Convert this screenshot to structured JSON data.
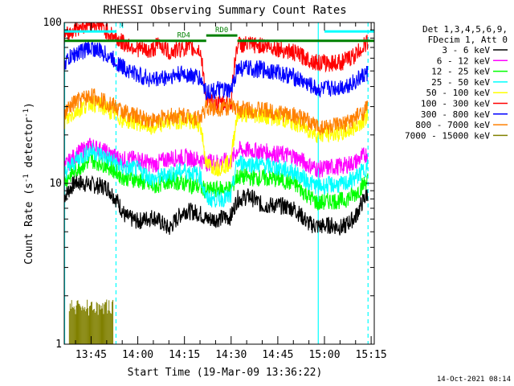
{
  "chart_data": {
    "type": "line",
    "title": "RHESSI Observing Summary Count Rates",
    "xlabel": "Start Time (19-Mar-09 13:36:22)",
    "ylabel_prefix": "Count Rate (s",
    "ylabel_exp": "-1",
    "ylabel_suffix": " detector",
    "ylabel_exp2": "-1",
    "ylabel_close": ")",
    "y_scale": "log",
    "ylim": [
      1,
      100
    ],
    "xlim": [
      "13:36:22",
      "15:16"
    ],
    "x_ticks": [
      {
        "time": "13:45",
        "label": "13:45"
      },
      {
        "time": "14:00",
        "label": "14:00"
      },
      {
        "time": "14:15",
        "label": "14:15"
      },
      {
        "time": "14:30",
        "label": "14:30"
      },
      {
        "time": "14:45",
        "label": "14:45"
      },
      {
        "time": "15:00",
        "label": "15:00"
      },
      {
        "time": "15:15",
        "label": "15:15"
      }
    ],
    "y_ticks": [
      {
        "value": 1,
        "label": "1"
      },
      {
        "value": 10,
        "label": "10"
      },
      {
        "value": 100,
        "label": "100"
      }
    ],
    "legend_header": [
      "Det 1,3,4,5,6,9,",
      "FDecim 1, Att 0"
    ],
    "legend_placement": "right",
    "timestamp": "14-Oct-2021 08:14",
    "attenuator_bars": [
      {
        "label": "",
        "start": "13:36:22",
        "end": "13:53",
        "color": "#00ffff",
        "level": 88
      },
      {
        "label": "N",
        "start": "13:53",
        "end": "13:55",
        "color": "#00ffff",
        "level": 88,
        "text_only": true
      },
      {
        "label": "",
        "start": "15:00",
        "end": "15:16",
        "color": "#00ffff",
        "level": 88
      },
      {
        "label": "RD4",
        "start": "13:36:22",
        "end": "14:22",
        "color": "#008000",
        "level": 77
      },
      {
        "label": "RD0",
        "start": "14:22",
        "end": "14:32",
        "color": "#008000",
        "level": 83
      },
      {
        "label": "",
        "start": "14:32",
        "end": "15:16",
        "color": "#008000",
        "level": 77
      }
    ],
    "vlines": [
      {
        "time": "13:36:30",
        "color": "#00ffff",
        "style": "solid"
      },
      {
        "time": "13:53",
        "color": "#00ffff",
        "style": "dashed"
      },
      {
        "time": "14:58",
        "color": "#00ffff",
        "style": "solid"
      },
      {
        "time": "15:14",
        "color": "#00ffff",
        "style": "dashed"
      }
    ],
    "series": [
      {
        "name": "3 - 6 keV",
        "color": "#000000",
        "points": [
          [
            "13:36:22",
            8.3
          ],
          [
            "13:40",
            10.2
          ],
          [
            "13:45",
            9.8
          ],
          [
            "13:50",
            9.5
          ],
          [
            "13:53",
            8.0
          ],
          [
            "13:56",
            6.2
          ],
          [
            "14:00",
            5.8
          ],
          [
            "14:05",
            6.2
          ],
          [
            "14:10",
            5.2
          ],
          [
            "14:15",
            6.8
          ],
          [
            "14:20",
            6.5
          ],
          [
            "14:22",
            6.0
          ],
          [
            "14:25",
            6.0
          ],
          [
            "14:30",
            6.2
          ],
          [
            "14:32",
            8.0
          ],
          [
            "14:36",
            8.3
          ],
          [
            "14:40",
            7.3
          ],
          [
            "14:45",
            7.3
          ],
          [
            "14:50",
            7.0
          ],
          [
            "14:55",
            5.6
          ],
          [
            "14:58",
            5.4
          ],
          [
            "15:02",
            5.5
          ],
          [
            "15:06",
            5.3
          ],
          [
            "15:10",
            6.2
          ],
          [
            "15:14",
            8.8
          ]
        ]
      },
      {
        "name": "6 - 12 keV",
        "color": "#ff00ff",
        "points": [
          [
            "13:36:22",
            12.5
          ],
          [
            "13:40",
            15.0
          ],
          [
            "13:45",
            17.2
          ],
          [
            "13:50",
            15.5
          ],
          [
            "13:55",
            14.0
          ],
          [
            "14:00",
            14.2
          ],
          [
            "14:05",
            13.0
          ],
          [
            "14:10",
            14.3
          ],
          [
            "14:15",
            14.5
          ],
          [
            "14:20",
            14.0
          ],
          [
            "14:22",
            13.5
          ],
          [
            "14:26",
            13.6
          ],
          [
            "14:30",
            13.8
          ],
          [
            "14:32",
            16.2
          ],
          [
            "14:40",
            15.8
          ],
          [
            "14:45",
            15.2
          ],
          [
            "14:50",
            14.8
          ],
          [
            "14:55",
            13.0
          ],
          [
            "14:58",
            12.2
          ],
          [
            "15:02",
            12.6
          ],
          [
            "15:06",
            12.8
          ],
          [
            "15:10",
            13.6
          ],
          [
            "15:14",
            15.5
          ]
        ]
      },
      {
        "name": "12 - 25 keV",
        "color": "#00ff00",
        "points": [
          [
            "13:36:22",
            10.2
          ],
          [
            "13:40",
            12.2
          ],
          [
            "13:45",
            14.0
          ],
          [
            "13:50",
            13.0
          ],
          [
            "13:55",
            11.0
          ],
          [
            "14:00",
            10.5
          ],
          [
            "14:05",
            9.5
          ],
          [
            "14:10",
            10.5
          ],
          [
            "14:15",
            10.0
          ],
          [
            "14:20",
            9.5
          ],
          [
            "14:22",
            9.0
          ],
          [
            "14:26",
            9.2
          ],
          [
            "14:30",
            9.3
          ],
          [
            "14:32",
            11.0
          ],
          [
            "14:40",
            10.8
          ],
          [
            "14:45",
            10.6
          ],
          [
            "14:50",
            10.0
          ],
          [
            "14:55",
            8.3
          ],
          [
            "14:58",
            7.5
          ],
          [
            "15:02",
            7.8
          ],
          [
            "15:06",
            7.8
          ],
          [
            "15:10",
            8.6
          ],
          [
            "15:14",
            10.6
          ]
        ]
      },
      {
        "name": "25 - 50 keV",
        "color": "#00ffff",
        "points": [
          [
            "13:36:22",
            11.5
          ],
          [
            "13:40",
            13.8
          ],
          [
            "13:45",
            16.0
          ],
          [
            "13:50",
            14.5
          ],
          [
            "13:55",
            12.5
          ],
          [
            "14:00",
            12.2
          ],
          [
            "14:05",
            10.5
          ],
          [
            "14:10",
            11.5
          ],
          [
            "14:15",
            12.0
          ],
          [
            "14:20",
            11.2
          ],
          [
            "14:22",
            8.0
          ],
          [
            "14:26",
            8.0
          ],
          [
            "14:30",
            8.2
          ],
          [
            "14:32",
            13.5
          ],
          [
            "14:40",
            13.0
          ],
          [
            "14:45",
            12.5
          ],
          [
            "14:50",
            11.8
          ],
          [
            "14:55",
            10.2
          ],
          [
            "14:58",
            9.5
          ],
          [
            "15:02",
            9.8
          ],
          [
            "15:06",
            9.8
          ],
          [
            "15:10",
            10.8
          ],
          [
            "15:14",
            12.8
          ]
        ]
      },
      {
        "name": "50 - 100 keV",
        "color": "#ffff00",
        "points": [
          [
            "13:36:22",
            24.0
          ],
          [
            "13:40",
            28.0
          ],
          [
            "13:45",
            32.0
          ],
          [
            "13:50",
            29.0
          ],
          [
            "13:55",
            25.0
          ],
          [
            "14:00",
            24.0
          ],
          [
            "14:05",
            22.0
          ],
          [
            "14:10",
            24.5
          ],
          [
            "14:15",
            24.5
          ],
          [
            "14:20",
            23.5
          ],
          [
            "14:22",
            13.0
          ],
          [
            "14:26",
            12.5
          ],
          [
            "14:30",
            13.5
          ],
          [
            "14:32",
            27.0
          ],
          [
            "14:40",
            26.5
          ],
          [
            "14:45",
            25.5
          ],
          [
            "14:50",
            24.0
          ],
          [
            "14:55",
            21.5
          ],
          [
            "14:58",
            20.0
          ],
          [
            "15:02",
            20.5
          ],
          [
            "15:06",
            20.5
          ],
          [
            "15:10",
            22.5
          ],
          [
            "15:14",
            26.5
          ]
        ]
      },
      {
        "name": "100 - 300 keV",
        "color": "#ff0000",
        "points": [
          [
            "13:36:22",
            80.0
          ],
          [
            "13:40",
            92.0
          ],
          [
            "13:45",
            100.0
          ],
          [
            "13:48",
            96.0
          ],
          [
            "13:50",
            88.0
          ],
          [
            "13:55",
            75.0
          ],
          [
            "14:00",
            69.0
          ],
          [
            "14:04",
            66.0
          ],
          [
            "14:07",
            74.0
          ],
          [
            "14:10",
            65.0
          ],
          [
            "14:15",
            70.0
          ],
          [
            "14:20",
            67.0
          ],
          [
            "14:22",
            32.0
          ],
          [
            "14:26",
            31.0
          ],
          [
            "14:30",
            32.0
          ],
          [
            "14:32",
            73.0
          ],
          [
            "14:40",
            72.0
          ],
          [
            "14:45",
            69.0
          ],
          [
            "14:50",
            65.0
          ],
          [
            "14:55",
            59.0
          ],
          [
            "14:58",
            56.0
          ],
          [
            "15:02",
            56.0
          ],
          [
            "15:06",
            57.0
          ],
          [
            "15:10",
            63.0
          ],
          [
            "15:14",
            76.0
          ]
        ]
      },
      {
        "name": "300 - 800 keV",
        "color": "#0000ff",
        "points": [
          [
            "13:36:22",
            56.0
          ],
          [
            "13:40",
            64.0
          ],
          [
            "13:45",
            70.0
          ],
          [
            "13:50",
            63.0
          ],
          [
            "13:55",
            53.0
          ],
          [
            "14:00",
            47.0
          ],
          [
            "14:05",
            44.0
          ],
          [
            "14:10",
            46.0
          ],
          [
            "14:15",
            48.0
          ],
          [
            "14:20",
            45.0
          ],
          [
            "14:22",
            37.0
          ],
          [
            "14:26",
            38.0
          ],
          [
            "14:30",
            37.0
          ],
          [
            "14:32",
            52.0
          ],
          [
            "14:40",
            51.0
          ],
          [
            "14:45",
            49.0
          ],
          [
            "14:50",
            46.0
          ],
          [
            "14:55",
            41.0
          ],
          [
            "14:58",
            38.0
          ],
          [
            "15:02",
            39.0
          ],
          [
            "15:06",
            40.0
          ],
          [
            "15:10",
            43.0
          ],
          [
            "15:14",
            49.0
          ]
        ]
      },
      {
        "name": "800 - 7000 keV",
        "color": "#ff8000",
        "points": [
          [
            "13:36:22",
            27.0
          ],
          [
            "13:40",
            32.0
          ],
          [
            "13:45",
            35.0
          ],
          [
            "13:50",
            32.0
          ],
          [
            "13:55",
            28.0
          ],
          [
            "14:00",
            26.0
          ],
          [
            "14:05",
            24.5
          ],
          [
            "14:10",
            26.0
          ],
          [
            "14:15",
            26.5
          ],
          [
            "14:20",
            25.5
          ],
          [
            "14:22",
            29.5
          ],
          [
            "14:26",
            29.5
          ],
          [
            "14:30",
            30.0
          ],
          [
            "14:32",
            29.0
          ],
          [
            "14:40",
            28.5
          ],
          [
            "14:45",
            27.5
          ],
          [
            "14:50",
            26.5
          ],
          [
            "14:55",
            24.0
          ],
          [
            "14:58",
            22.5
          ],
          [
            "15:02",
            22.5
          ],
          [
            "15:06",
            23.0
          ],
          [
            "15:10",
            25.5
          ],
          [
            "15:14",
            29.5
          ]
        ]
      },
      {
        "name": "7000 - 15000 keV",
        "color": "#808000",
        "points": [
          [
            "13:38",
            1.4
          ],
          [
            "13:45",
            1.6
          ],
          [
            "13:50",
            1.5
          ],
          [
            "13:52",
            1.4
          ]
        ]
      }
    ]
  }
}
